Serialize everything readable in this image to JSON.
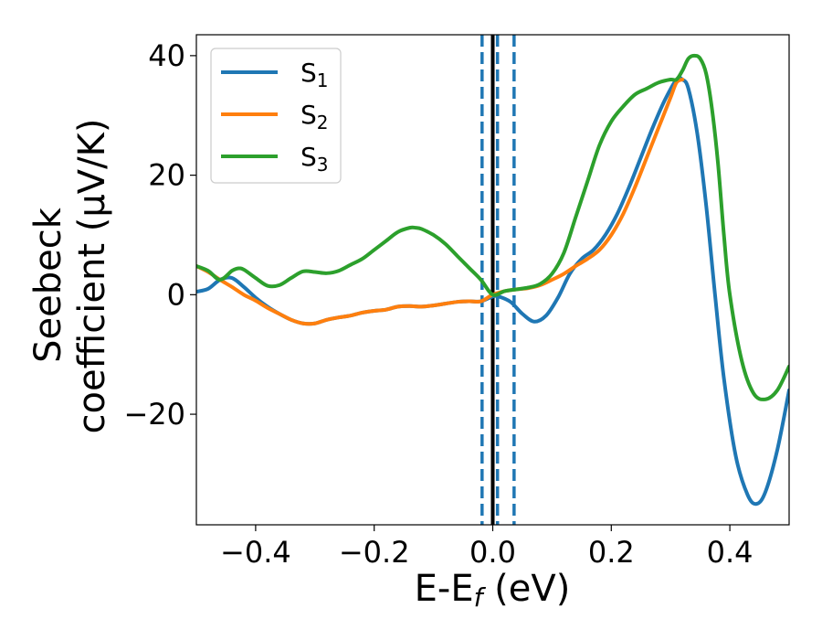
{
  "chart_data": {
    "type": "line",
    "xlabel": "E-E",
    "xlabel_sub": "f",
    "xlabel_unit": " (eV)",
    "ylabel_line1": "Seebeck",
    "ylabel_line2": "coefficient  (μV/K)",
    "xlim": [
      -0.5,
      0.5
    ],
    "ylim": [
      -38.5,
      43.5
    ],
    "xticks": [
      -0.4,
      -0.2,
      0.0,
      0.2,
      0.4
    ],
    "xtick_labels": [
      "−0.4",
      "−0.2",
      "0.0",
      "0.2",
      "0.4"
    ],
    "yticks": [
      -20,
      0,
      20,
      40
    ],
    "ytick_labels": [
      "−20",
      "0",
      "20",
      "40"
    ],
    "legend_position": "upper-left",
    "vlines": [
      {
        "x": 0.0,
        "style": "solid",
        "color": "#000000"
      },
      {
        "x": -0.018,
        "style": "dashed",
        "color": "#1f77b4"
      },
      {
        "x": 0.008,
        "style": "dashed",
        "color": "#1f77b4"
      },
      {
        "x": 0.036,
        "style": "dashed",
        "color": "#1f77b4"
      }
    ],
    "series": [
      {
        "name": "S",
        "sub": "1",
        "color": "#1f77b4",
        "points": [
          [
            -0.5,
            0.5
          ],
          [
            -0.48,
            1.0
          ],
          [
            -0.46,
            2.5
          ],
          [
            -0.44,
            2.8
          ],
          [
            -0.42,
            1.3
          ],
          [
            -0.4,
            -0.5
          ],
          [
            -0.38,
            -2.0
          ],
          [
            -0.36,
            -3.2
          ],
          [
            -0.34,
            -4.2
          ],
          [
            -0.32,
            -4.8
          ],
          [
            -0.3,
            -4.8
          ],
          [
            -0.28,
            -4.2
          ],
          [
            -0.26,
            -3.8
          ],
          [
            -0.24,
            -3.5
          ],
          [
            -0.22,
            -3.0
          ],
          [
            -0.2,
            -2.7
          ],
          [
            -0.18,
            -2.5
          ],
          [
            -0.16,
            -2.0
          ],
          [
            -0.14,
            -1.9
          ],
          [
            -0.12,
            -2.0
          ],
          [
            -0.1,
            -1.8
          ],
          [
            -0.08,
            -1.5
          ],
          [
            -0.06,
            -1.2
          ],
          [
            -0.04,
            -1.1
          ],
          [
            -0.02,
            -1.1
          ],
          [
            0.0,
            -0.3
          ],
          [
            0.01,
            -0.3
          ],
          [
            0.03,
            -1.2
          ],
          [
            0.05,
            -3.2
          ],
          [
            0.07,
            -4.5
          ],
          [
            0.09,
            -3.5
          ],
          [
            0.11,
            -0.5
          ],
          [
            0.13,
            3.5
          ],
          [
            0.15,
            6.0
          ],
          [
            0.17,
            7.5
          ],
          [
            0.19,
            10.0
          ],
          [
            0.21,
            13.5
          ],
          [
            0.23,
            18.0
          ],
          [
            0.25,
            23.0
          ],
          [
            0.27,
            28.0
          ],
          [
            0.29,
            32.5
          ],
          [
            0.31,
            36.0
          ],
          [
            0.32,
            36.0
          ],
          [
            0.33,
            34.5
          ],
          [
            0.345,
            27.0
          ],
          [
            0.36,
            15.0
          ],
          [
            0.375,
            0.0
          ],
          [
            0.39,
            -14.0
          ],
          [
            0.41,
            -27.0
          ],
          [
            0.43,
            -33.5
          ],
          [
            0.445,
            -35.0
          ],
          [
            0.46,
            -33.0
          ],
          [
            0.48,
            -26.0
          ],
          [
            0.5,
            -16.0
          ]
        ]
      },
      {
        "name": "S",
        "sub": "2",
        "color": "#ff7f0e",
        "points": [
          [
            -0.5,
            4.8
          ],
          [
            -0.48,
            3.8
          ],
          [
            -0.46,
            2.5
          ],
          [
            -0.44,
            1.3
          ],
          [
            -0.42,
            0.0
          ],
          [
            -0.4,
            -1.0
          ],
          [
            -0.38,
            -2.2
          ],
          [
            -0.36,
            -3.2
          ],
          [
            -0.34,
            -4.2
          ],
          [
            -0.32,
            -4.8
          ],
          [
            -0.3,
            -4.8
          ],
          [
            -0.28,
            -4.2
          ],
          [
            -0.26,
            -3.8
          ],
          [
            -0.24,
            -3.5
          ],
          [
            -0.22,
            -3.0
          ],
          [
            -0.2,
            -2.7
          ],
          [
            -0.18,
            -2.5
          ],
          [
            -0.16,
            -2.0
          ],
          [
            -0.14,
            -1.9
          ],
          [
            -0.12,
            -2.0
          ],
          [
            -0.1,
            -1.8
          ],
          [
            -0.08,
            -1.5
          ],
          [
            -0.06,
            -1.2
          ],
          [
            -0.04,
            -1.1
          ],
          [
            -0.02,
            -1.1
          ],
          [
            0.0,
            0.0
          ],
          [
            0.02,
            0.6
          ],
          [
            0.04,
            0.9
          ],
          [
            0.06,
            1.1
          ],
          [
            0.08,
            1.6
          ],
          [
            0.1,
            2.5
          ],
          [
            0.12,
            3.5
          ],
          [
            0.14,
            4.8
          ],
          [
            0.16,
            6.0
          ],
          [
            0.18,
            7.5
          ],
          [
            0.2,
            10.0
          ],
          [
            0.22,
            13.5
          ],
          [
            0.24,
            18.0
          ],
          [
            0.26,
            23.0
          ],
          [
            0.28,
            28.0
          ],
          [
            0.3,
            33.0
          ],
          [
            0.31,
            35.5
          ],
          [
            0.32,
            36.0
          ]
        ]
      },
      {
        "name": "S",
        "sub": "3",
        "color": "#2ca02c",
        "points": [
          [
            -0.5,
            4.8
          ],
          [
            -0.48,
            4.0
          ],
          [
            -0.46,
            2.5
          ],
          [
            -0.44,
            4.0
          ],
          [
            -0.43,
            4.4
          ],
          [
            -0.42,
            4.2
          ],
          [
            -0.4,
            2.8
          ],
          [
            -0.38,
            1.5
          ],
          [
            -0.36,
            1.6
          ],
          [
            -0.34,
            2.8
          ],
          [
            -0.32,
            3.9
          ],
          [
            -0.3,
            3.8
          ],
          [
            -0.28,
            3.6
          ],
          [
            -0.26,
            4.0
          ],
          [
            -0.24,
            5.0
          ],
          [
            -0.22,
            6.0
          ],
          [
            -0.2,
            7.5
          ],
          [
            -0.18,
            9.0
          ],
          [
            -0.16,
            10.5
          ],
          [
            -0.14,
            11.2
          ],
          [
            -0.13,
            11.2
          ],
          [
            -0.12,
            11.0
          ],
          [
            -0.1,
            10.0
          ],
          [
            -0.08,
            8.5
          ],
          [
            -0.06,
            6.5
          ],
          [
            -0.04,
            4.5
          ],
          [
            -0.02,
            2.5
          ],
          [
            0.0,
            0.0
          ],
          [
            0.02,
            0.6
          ],
          [
            0.04,
            0.9
          ],
          [
            0.06,
            1.2
          ],
          [
            0.08,
            1.8
          ],
          [
            0.1,
            3.5
          ],
          [
            0.12,
            7.0
          ],
          [
            0.14,
            13.0
          ],
          [
            0.16,
            19.0
          ],
          [
            0.18,
            25.0
          ],
          [
            0.2,
            29.0
          ],
          [
            0.22,
            31.5
          ],
          [
            0.24,
            33.5
          ],
          [
            0.26,
            34.5
          ],
          [
            0.28,
            35.5
          ],
          [
            0.3,
            36.0
          ],
          [
            0.31,
            36.0
          ],
          [
            0.32,
            37.5
          ],
          [
            0.33,
            39.5
          ],
          [
            0.34,
            40.0
          ],
          [
            0.35,
            39.5
          ],
          [
            0.36,
            37.0
          ],
          [
            0.37,
            31.0
          ],
          [
            0.38,
            22.0
          ],
          [
            0.39,
            10.0
          ],
          [
            0.4,
            0.0
          ],
          [
            0.42,
            -11.0
          ],
          [
            0.44,
            -16.5
          ],
          [
            0.46,
            -17.5
          ],
          [
            0.48,
            -16.0
          ],
          [
            0.5,
            -12.0
          ]
        ]
      }
    ]
  }
}
